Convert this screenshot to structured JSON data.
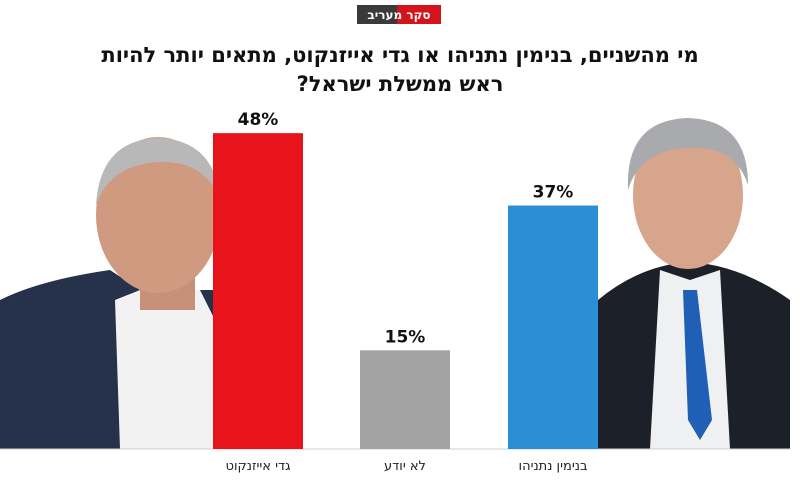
{
  "chart_data": {
    "type": "bar",
    "badge": "סקר מעריב",
    "title": [
      "מי מהשניים, בנימין נתניהו או גדי אייזנקוט, מתאים יותר להיות",
      "ראש ממשלת ישראל?"
    ],
    "categories": [
      "גדי אייזנקוט",
      "לא יודע",
      "בנימין נתניהו"
    ],
    "values": [
      48,
      15,
      37
    ],
    "value_labels": [
      "48%",
      "15%",
      "37%"
    ],
    "colors": [
      "#e8141b",
      "#a3a3a3",
      "#2b8fd6"
    ]
  }
}
